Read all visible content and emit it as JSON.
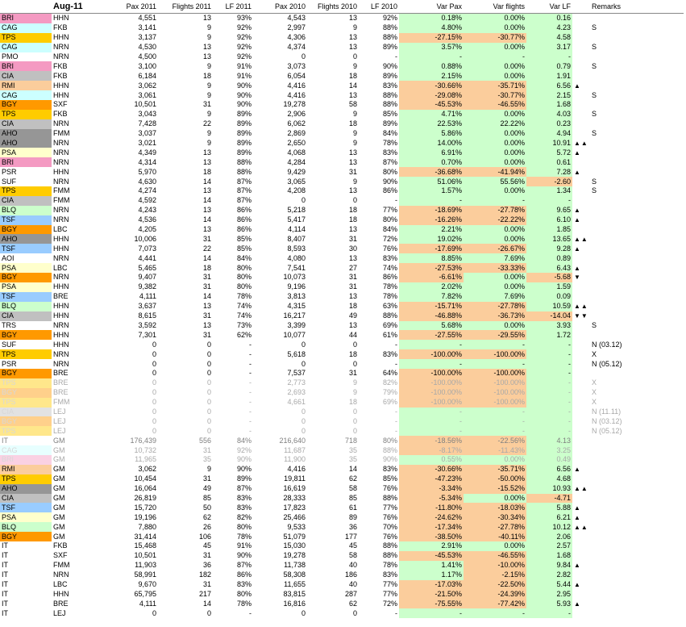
{
  "header": {
    "title": "Aug-11",
    "columns": [
      "Pax 2011",
      "Flights 2011",
      "LF 2011",
      "Pax 2010",
      "Flights 2010",
      "LF 2010",
      "Var Pax",
      "Var flights",
      "Var LF",
      "Remarks"
    ]
  },
  "colors": {
    "BRI": "#f49ac2",
    "CAG": "#ccffff",
    "TPS": "#ffcc00",
    "PMO": "#ffffff",
    "CIA": "#c0c0c0",
    "RMI": "#fbcd9c",
    "BGY": "#ff9900",
    "AHO": "#969696",
    "PSA": "#ffffcc",
    "PSR": "#ffffff",
    "SUF": "#ffffff",
    "BLQ": "#ccffcc",
    "TSF": "#99ccff",
    "AOI": "#ffffff",
    "TRS": "#ffffff",
    "IT": "#ffffff",
    "var_positive": "#ccffcc",
    "var_negative": "#fbcd9c"
  },
  "rows": [
    {
      "code": "BRI",
      "dest": "HHN",
      "pax11": "4,551",
      "fl11": "13",
      "lf11": "93%",
      "pax10": "4,543",
      "fl10": "13",
      "lf10": "92%",
      "vpax": "0.18%",
      "vfl": "0.00%",
      "vlf": "0.16",
      "mark": "",
      "rem": ""
    },
    {
      "code": "CAG",
      "dest": "FKB",
      "pax11": "3,141",
      "fl11": "9",
      "lf11": "92%",
      "pax10": "2,997",
      "fl10": "9",
      "lf10": "88%",
      "vpax": "4.80%",
      "vfl": "0.00%",
      "vlf": "4.23",
      "mark": "",
      "rem": "S"
    },
    {
      "code": "TPS",
      "dest": "HHN",
      "pax11": "3,137",
      "fl11": "9",
      "lf11": "92%",
      "pax10": "4,306",
      "fl10": "13",
      "lf10": "88%",
      "vpax": "-27.15%",
      "vfl": "-30.77%",
      "vlf": "4.58",
      "mark": "",
      "rem": ""
    },
    {
      "code": "CAG",
      "dest": "NRN",
      "pax11": "4,530",
      "fl11": "13",
      "lf11": "92%",
      "pax10": "4,374",
      "fl10": "13",
      "lf10": "89%",
      "vpax": "3.57%",
      "vfl": "0.00%",
      "vlf": "3.17",
      "mark": "",
      "rem": "S"
    },
    {
      "code": "PMO",
      "dest": "NRN",
      "pax11": "4,500",
      "fl11": "13",
      "lf11": "92%",
      "pax10": "0",
      "fl10": "0",
      "lf10": "-",
      "vpax": "-",
      "vfl": "-",
      "vlf": "-",
      "mark": "",
      "rem": ""
    },
    {
      "code": "BRI",
      "dest": "FKB",
      "pax11": "3,100",
      "fl11": "9",
      "lf11": "91%",
      "pax10": "3,073",
      "fl10": "9",
      "lf10": "90%",
      "vpax": "0.88%",
      "vfl": "0.00%",
      "vlf": "0.79",
      "mark": "",
      "rem": "S"
    },
    {
      "code": "CIA",
      "dest": "FKB",
      "pax11": "6,184",
      "fl11": "18",
      "lf11": "91%",
      "pax10": "6,054",
      "fl10": "18",
      "lf10": "89%",
      "vpax": "2.15%",
      "vfl": "0.00%",
      "vlf": "1.91",
      "mark": "",
      "rem": ""
    },
    {
      "code": "RMI",
      "dest": "HHN",
      "pax11": "3,062",
      "fl11": "9",
      "lf11": "90%",
      "pax10": "4,416",
      "fl10": "14",
      "lf10": "83%",
      "vpax": "-30.66%",
      "vfl": "-35.71%",
      "vlf": "6.56",
      "mark": "▲",
      "rem": ""
    },
    {
      "code": "CAG",
      "dest": "HHN",
      "pax11": "3,061",
      "fl11": "9",
      "lf11": "90%",
      "pax10": "4,416",
      "fl10": "13",
      "lf10": "88%",
      "vpax": "-29.08%",
      "vfl": "-30.77%",
      "vlf": "2.15",
      "mark": "",
      "rem": "S"
    },
    {
      "code": "BGY",
      "dest": "SXF",
      "pax11": "10,501",
      "fl11": "31",
      "lf11": "90%",
      "pax10": "19,278",
      "fl10": "58",
      "lf10": "88%",
      "vpax": "-45.53%",
      "vfl": "-46.55%",
      "vlf": "1.68",
      "mark": "",
      "rem": ""
    },
    {
      "code": "TPS",
      "dest": "FKB",
      "pax11": "3,043",
      "fl11": "9",
      "lf11": "89%",
      "pax10": "2,906",
      "fl10": "9",
      "lf10": "85%",
      "vpax": "4.71%",
      "vfl": "0.00%",
      "vlf": "4.03",
      "mark": "",
      "rem": "S"
    },
    {
      "code": "CIA",
      "dest": "NRN",
      "pax11": "7,428",
      "fl11": "22",
      "lf11": "89%",
      "pax10": "6,062",
      "fl10": "18",
      "lf10": "89%",
      "vpax": "22.53%",
      "vfl": "22.22%",
      "vlf": "0.23",
      "mark": "",
      "rem": ""
    },
    {
      "code": "AHO",
      "dest": "FMM",
      "pax11": "3,037",
      "fl11": "9",
      "lf11": "89%",
      "pax10": "2,869",
      "fl10": "9",
      "lf10": "84%",
      "vpax": "5.86%",
      "vfl": "0.00%",
      "vlf": "4.94",
      "mark": "",
      "rem": "S"
    },
    {
      "code": "AHO",
      "dest": "NRN",
      "pax11": "3,021",
      "fl11": "9",
      "lf11": "89%",
      "pax10": "2,650",
      "fl10": "9",
      "lf10": "78%",
      "vpax": "14.00%",
      "vfl": "0.00%",
      "vlf": "10.91",
      "mark": "▲▲",
      "rem": ""
    },
    {
      "code": "PSA",
      "dest": "NRN",
      "pax11": "4,349",
      "fl11": "13",
      "lf11": "89%",
      "pax10": "4,068",
      "fl10": "13",
      "lf10": "83%",
      "vpax": "6.91%",
      "vfl": "0.00%",
      "vlf": "5.72",
      "mark": "▲",
      "rem": ""
    },
    {
      "code": "BRI",
      "dest": "NRN",
      "pax11": "4,314",
      "fl11": "13",
      "lf11": "88%",
      "pax10": "4,284",
      "fl10": "13",
      "lf10": "87%",
      "vpax": "0.70%",
      "vfl": "0.00%",
      "vlf": "0.61",
      "mark": "",
      "rem": ""
    },
    {
      "code": "PSR",
      "dest": "HHN",
      "pax11": "5,970",
      "fl11": "18",
      "lf11": "88%",
      "pax10": "9,429",
      "fl10": "31",
      "lf10": "80%",
      "vpax": "-36.68%",
      "vfl": "-41.94%",
      "vlf": "7.28",
      "mark": "▲",
      "rem": ""
    },
    {
      "code": "SUF",
      "dest": "NRN",
      "pax11": "4,630",
      "fl11": "14",
      "lf11": "87%",
      "pax10": "3,065",
      "fl10": "9",
      "lf10": "90%",
      "vpax": "51.06%",
      "vfl": "55.56%",
      "vlf": "-2.60",
      "mark": "",
      "rem": "S"
    },
    {
      "code": "TPS",
      "dest": "FMM",
      "pax11": "4,274",
      "fl11": "13",
      "lf11": "87%",
      "pax10": "4,208",
      "fl10": "13",
      "lf10": "86%",
      "vpax": "1.57%",
      "vfl": "0.00%",
      "vlf": "1.34",
      "mark": "",
      "rem": "S"
    },
    {
      "code": "CIA",
      "dest": "FMM",
      "pax11": "4,592",
      "fl11": "14",
      "lf11": "87%",
      "pax10": "0",
      "fl10": "0",
      "lf10": "-",
      "vpax": "-",
      "vfl": "-",
      "vlf": "-",
      "mark": "",
      "rem": ""
    },
    {
      "code": "BLQ",
      "dest": "NRN",
      "pax11": "4,243",
      "fl11": "13",
      "lf11": "86%",
      "pax10": "5,218",
      "fl10": "18",
      "lf10": "77%",
      "vpax": "-18.69%",
      "vfl": "-27.78%",
      "vlf": "9.65",
      "mark": "▲",
      "rem": ""
    },
    {
      "code": "TSF",
      "dest": "NRN",
      "pax11": "4,536",
      "fl11": "14",
      "lf11": "86%",
      "pax10": "5,417",
      "fl10": "18",
      "lf10": "80%",
      "vpax": "-16.26%",
      "vfl": "-22.22%",
      "vlf": "6.10",
      "mark": "▲",
      "rem": ""
    },
    {
      "code": "BGY",
      "dest": "LBC",
      "pax11": "4,205",
      "fl11": "13",
      "lf11": "86%",
      "pax10": "4,114",
      "fl10": "13",
      "lf10": "84%",
      "vpax": "2.21%",
      "vfl": "0.00%",
      "vlf": "1.85",
      "mark": "",
      "rem": ""
    },
    {
      "code": "AHO",
      "dest": "HHN",
      "pax11": "10,006",
      "fl11": "31",
      "lf11": "85%",
      "pax10": "8,407",
      "fl10": "31",
      "lf10": "72%",
      "vpax": "19.02%",
      "vfl": "0.00%",
      "vlf": "13.65",
      "mark": "▲▲",
      "rem": ""
    },
    {
      "code": "TSF",
      "dest": "HHN",
      "pax11": "7,073",
      "fl11": "22",
      "lf11": "85%",
      "pax10": "8,593",
      "fl10": "30",
      "lf10": "76%",
      "vpax": "-17.69%",
      "vfl": "-26.67%",
      "vlf": "9.28",
      "mark": "▲",
      "rem": ""
    },
    {
      "code": "AOI",
      "dest": "NRN",
      "pax11": "4,441",
      "fl11": "14",
      "lf11": "84%",
      "pax10": "4,080",
      "fl10": "13",
      "lf10": "83%",
      "vpax": "8.85%",
      "vfl": "7.69%",
      "vlf": "0.89",
      "mark": "",
      "rem": ""
    },
    {
      "code": "PSA",
      "dest": "LBC",
      "pax11": "5,465",
      "fl11": "18",
      "lf11": "80%",
      "pax10": "7,541",
      "fl10": "27",
      "lf10": "74%",
      "vpax": "-27.53%",
      "vfl": "-33.33%",
      "vlf": "6.43",
      "mark": "▲",
      "rem": ""
    },
    {
      "code": "BGY",
      "dest": "NRN",
      "pax11": "9,407",
      "fl11": "31",
      "lf11": "80%",
      "pax10": "10,073",
      "fl10": "31",
      "lf10": "86%",
      "vpax": "-6.61%",
      "vfl": "0.00%",
      "vlf": "-5.68",
      "mark": "▼",
      "rem": ""
    },
    {
      "code": "PSA",
      "dest": "HHN",
      "pax11": "9,382",
      "fl11": "31",
      "lf11": "80%",
      "pax10": "9,196",
      "fl10": "31",
      "lf10": "78%",
      "vpax": "2.02%",
      "vfl": "0.00%",
      "vlf": "1.59",
      "mark": "",
      "rem": ""
    },
    {
      "code": "TSF",
      "dest": "BRE",
      "pax11": "4,111",
      "fl11": "14",
      "lf11": "78%",
      "pax10": "3,813",
      "fl10": "13",
      "lf10": "78%",
      "vpax": "7.82%",
      "vfl": "7.69%",
      "vlf": "0.09",
      "mark": "",
      "rem": ""
    },
    {
      "code": "BLQ",
      "dest": "HHN",
      "pax11": "3,637",
      "fl11": "13",
      "lf11": "74%",
      "pax10": "4,315",
      "fl10": "18",
      "lf10": "63%",
      "vpax": "-15.71%",
      "vfl": "-27.78%",
      "vlf": "10.59",
      "mark": "▲▲",
      "rem": ""
    },
    {
      "code": "CIA",
      "dest": "HHN",
      "pax11": "8,615",
      "fl11": "31",
      "lf11": "74%",
      "pax10": "16,217",
      "fl10": "49",
      "lf10": "88%",
      "vpax": "-46.88%",
      "vfl": "-36.73%",
      "vlf": "-14.04",
      "mark": "▼▼",
      "rem": ""
    },
    {
      "code": "TRS",
      "dest": "NRN",
      "pax11": "3,592",
      "fl11": "13",
      "lf11": "73%",
      "pax10": "3,399",
      "fl10": "13",
      "lf10": "69%",
      "vpax": "5.68%",
      "vfl": "0.00%",
      "vlf": "3.93",
      "mark": "",
      "rem": "S"
    },
    {
      "code": "BGY",
      "dest": "HHN",
      "pax11": "7,301",
      "fl11": "31",
      "lf11": "62%",
      "pax10": "10,077",
      "fl10": "44",
      "lf10": "61%",
      "vpax": "-27.55%",
      "vfl": "-29.55%",
      "vlf": "1.72",
      "mark": "",
      "rem": ""
    },
    {
      "code": "SUF",
      "dest": "HHN",
      "pax11": "0",
      "fl11": "0",
      "lf11": "-",
      "pax10": "0",
      "fl10": "0",
      "lf10": "-",
      "vpax": "-",
      "vfl": "-",
      "vlf": "-",
      "mark": "",
      "rem": "N (03.12)"
    },
    {
      "code": "TPS",
      "dest": "NRN",
      "pax11": "0",
      "fl11": "0",
      "lf11": "-",
      "pax10": "5,618",
      "fl10": "18",
      "lf10": "83%",
      "vpax": "-100.00%",
      "vfl": "-100.00%",
      "vlf": "-",
      "mark": "",
      "rem": "X"
    },
    {
      "code": "PSR",
      "dest": "NRN",
      "pax11": "0",
      "fl11": "0",
      "lf11": "-",
      "pax10": "0",
      "fl10": "0",
      "lf10": "-",
      "vpax": "-",
      "vfl": "-",
      "vlf": "-",
      "mark": "",
      "rem": "N (05.12)"
    },
    {
      "code": "BGY",
      "dest": "BRE",
      "pax11": "0",
      "fl11": "0",
      "lf11": "-",
      "pax10": "7,537",
      "fl10": "31",
      "lf10": "64%",
      "vpax": "-100.00%",
      "vfl": "-100.00%",
      "vlf": "-",
      "mark": "",
      "rem": ""
    },
    {
      "code": "TPS",
      "dest": "BRE",
      "pax11": "0",
      "fl11": "0",
      "lf11": "-",
      "pax10": "2,773",
      "fl10": "9",
      "lf10": "82%",
      "vpax": "-100.00%",
      "vfl": "-100.00%",
      "vlf": "-",
      "mark": "",
      "rem": "X",
      "faded": true
    },
    {
      "code": "BGY",
      "dest": "BRE",
      "pax11": "0",
      "fl11": "0",
      "lf11": "-",
      "pax10": "2,693",
      "fl10": "9",
      "lf10": "79%",
      "vpax": "-100.00%",
      "vfl": "-100.00%",
      "vlf": "-",
      "mark": "",
      "rem": "X",
      "faded": true
    },
    {
      "code": "TPS",
      "dest": "FMM",
      "pax11": "0",
      "fl11": "0",
      "lf11": "-",
      "pax10": "4,661",
      "fl10": "18",
      "lf10": "69%",
      "vpax": "-100.00%",
      "vfl": "-100.00%",
      "vlf": "-",
      "mark": "",
      "rem": "X",
      "faded": true
    },
    {
      "code": "CIA",
      "dest": "LEJ",
      "pax11": "0",
      "fl11": "0",
      "lf11": "-",
      "pax10": "0",
      "fl10": "0",
      "lf10": "-",
      "vpax": "-",
      "vfl": "-",
      "vlf": "-",
      "mark": "",
      "rem": "N (11.11)",
      "faded": true
    },
    {
      "code": "BGY",
      "dest": "LEJ",
      "pax11": "0",
      "fl11": "0",
      "lf11": "-",
      "pax10": "0",
      "fl10": "0",
      "lf10": "-",
      "vpax": "-",
      "vfl": "-",
      "vlf": "-",
      "mark": "",
      "rem": "N (03.12)",
      "faded": true
    },
    {
      "code": "TPS",
      "dest": "LEJ",
      "pax11": "0",
      "fl11": "0",
      "lf11": "-",
      "pax10": "0",
      "fl10": "0",
      "lf10": "-",
      "vpax": "-",
      "vfl": "-",
      "vlf": "-",
      "mark": "",
      "rem": "N (05.12)",
      "faded": true
    },
    {
      "code": "IT",
      "dest": "GM",
      "pax11": "176,439",
      "fl11": "556",
      "lf11": "84%",
      "pax10": "216,640",
      "fl10": "718",
      "lf10": "80%",
      "vpax": "-18.56%",
      "vfl": "-22.56%",
      "vlf": "4.13",
      "mark": "",
      "rem": "",
      "total": true
    },
    {
      "code": "CAG",
      "dest": "GM",
      "pax11": "10,732",
      "fl11": "31",
      "lf11": "92%",
      "pax10": "11,687",
      "fl10": "35",
      "lf10": "88%",
      "vpax": "-8.17%",
      "vfl": "-11.43%",
      "vlf": "3.25",
      "mark": "",
      "rem": "",
      "faded": true
    },
    {
      "code": "BRI",
      "dest": "GM",
      "pax11": "11,965",
      "fl11": "35",
      "lf11": "90%",
      "pax10": "11,900",
      "fl10": "35",
      "lf10": "90%",
      "vpax": "0.55%",
      "vfl": "0.00%",
      "vlf": "0.49",
      "mark": "",
      "rem": "",
      "faded": true
    },
    {
      "code": "RMI",
      "dest": "GM",
      "pax11": "3,062",
      "fl11": "9",
      "lf11": "90%",
      "pax10": "4,416",
      "fl10": "14",
      "lf10": "83%",
      "vpax": "-30.66%",
      "vfl": "-35.71%",
      "vlf": "6.56",
      "mark": "▲",
      "rem": ""
    },
    {
      "code": "TPS",
      "dest": "GM",
      "pax11": "10,454",
      "fl11": "31",
      "lf11": "89%",
      "pax10": "19,811",
      "fl10": "62",
      "lf10": "85%",
      "vpax": "-47.23%",
      "vfl": "-50.00%",
      "vlf": "4.68",
      "mark": "",
      "rem": ""
    },
    {
      "code": "AHO",
      "dest": "GM",
      "pax11": "16,064",
      "fl11": "49",
      "lf11": "87%",
      "pax10": "16,619",
      "fl10": "58",
      "lf10": "76%",
      "vpax": "-3.34%",
      "vfl": "-15.52%",
      "vlf": "10.93",
      "mark": "▲▲",
      "rem": ""
    },
    {
      "code": "CIA",
      "dest": "GM",
      "pax11": "26,819",
      "fl11": "85",
      "lf11": "83%",
      "pax10": "28,333",
      "fl10": "85",
      "lf10": "88%",
      "vpax": "-5.34%",
      "vfl": "0.00%",
      "vlf": "-4.71",
      "mark": "",
      "rem": ""
    },
    {
      "code": "TSF",
      "dest": "GM",
      "pax11": "15,720",
      "fl11": "50",
      "lf11": "83%",
      "pax10": "17,823",
      "fl10": "61",
      "lf10": "77%",
      "vpax": "-11.80%",
      "vfl": "-18.03%",
      "vlf": "5.88",
      "mark": "▲",
      "rem": ""
    },
    {
      "code": "PSA",
      "dest": "GM",
      "pax11": "19,196",
      "fl11": "62",
      "lf11": "82%",
      "pax10": "25,466",
      "fl10": "89",
      "lf10": "76%",
      "vpax": "-24.62%",
      "vfl": "-30.34%",
      "vlf": "6.21",
      "mark": "▲",
      "rem": ""
    },
    {
      "code": "BLQ",
      "dest": "GM",
      "pax11": "7,880",
      "fl11": "26",
      "lf11": "80%",
      "pax10": "9,533",
      "fl10": "36",
      "lf10": "70%",
      "vpax": "-17.34%",
      "vfl": "-27.78%",
      "vlf": "10.12",
      "mark": "▲▲",
      "rem": ""
    },
    {
      "code": "BGY",
      "dest": "GM",
      "pax11": "31,414",
      "fl11": "106",
      "lf11": "78%",
      "pax10": "51,079",
      "fl10": "177",
      "lf10": "76%",
      "vpax": "-38.50%",
      "vfl": "-40.11%",
      "vlf": "2.06",
      "mark": "",
      "rem": ""
    },
    {
      "code": "IT",
      "dest": "FKB",
      "pax11": "15,468",
      "fl11": "45",
      "lf11": "91%",
      "pax10": "15,030",
      "fl10": "45",
      "lf10": "88%",
      "vpax": "2.91%",
      "vfl": "0.00%",
      "vlf": "2.57",
      "mark": "",
      "rem": ""
    },
    {
      "code": "IT",
      "dest": "SXF",
      "pax11": "10,501",
      "fl11": "31",
      "lf11": "90%",
      "pax10": "19,278",
      "fl10": "58",
      "lf10": "88%",
      "vpax": "-45.53%",
      "vfl": "-46.55%",
      "vlf": "1.68",
      "mark": "",
      "rem": ""
    },
    {
      "code": "IT",
      "dest": "FMM",
      "pax11": "11,903",
      "fl11": "36",
      "lf11": "87%",
      "pax10": "11,738",
      "fl10": "40",
      "lf10": "78%",
      "vpax": "1.41%",
      "vfl": "-10.00%",
      "vlf": "9.84",
      "mark": "▲",
      "rem": ""
    },
    {
      "code": "IT",
      "dest": "NRN",
      "pax11": "58,991",
      "fl11": "182",
      "lf11": "86%",
      "pax10": "58,308",
      "fl10": "186",
      "lf10": "83%",
      "vpax": "1.17%",
      "vfl": "-2.15%",
      "vlf": "2.82",
      "mark": "",
      "rem": ""
    },
    {
      "code": "IT",
      "dest": "LBC",
      "pax11": "9,670",
      "fl11": "31",
      "lf11": "83%",
      "pax10": "11,655",
      "fl10": "40",
      "lf10": "77%",
      "vpax": "-17.03%",
      "vfl": "-22.50%",
      "vlf": "5.44",
      "mark": "▲",
      "rem": ""
    },
    {
      "code": "IT",
      "dest": "HHN",
      "pax11": "65,795",
      "fl11": "217",
      "lf11": "80%",
      "pax10": "83,815",
      "fl10": "287",
      "lf10": "77%",
      "vpax": "-21.50%",
      "vfl": "-24.39%",
      "vlf": "2.95",
      "mark": "",
      "rem": ""
    },
    {
      "code": "IT",
      "dest": "BRE",
      "pax11": "4,111",
      "fl11": "14",
      "lf11": "78%",
      "pax10": "16,816",
      "fl10": "62",
      "lf10": "72%",
      "vpax": "-75.55%",
      "vfl": "-77.42%",
      "vlf": "5.93",
      "mark": "▲",
      "rem": ""
    },
    {
      "code": "IT",
      "dest": "LEJ",
      "pax11": "0",
      "fl11": "0",
      "lf11": "-",
      "pax10": "0",
      "fl10": "0",
      "lf10": "-",
      "vpax": "-",
      "vfl": "-",
      "vlf": "-",
      "mark": "",
      "rem": ""
    }
  ]
}
